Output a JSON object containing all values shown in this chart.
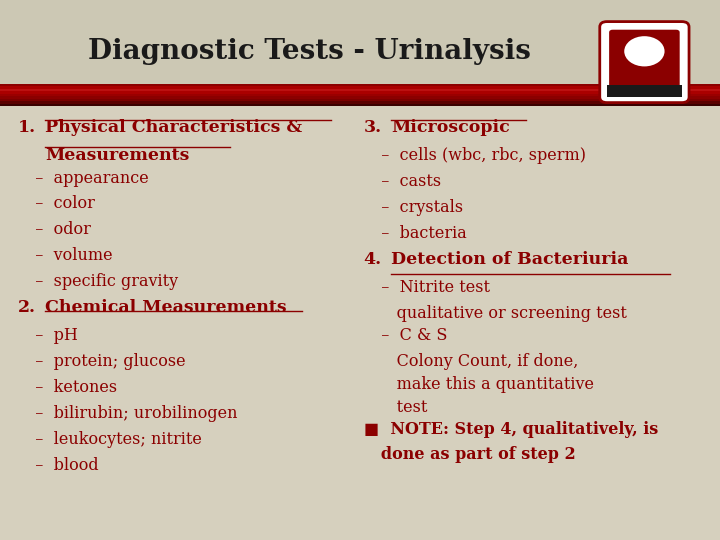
{
  "title": "Diagnostic Tests - Urinalysis",
  "bg_color": "#d6d0be",
  "header_bg": "#ccc8b4",
  "text_color_dark": "#8b0000",
  "title_color": "#1a1a1a",
  "left_column": [
    {
      "type": "numbered_header",
      "num": "1.",
      "text1": "Physical Characteristics &",
      "text2": "Measurements"
    },
    {
      "type": "bullet",
      "text": "  –  appearance"
    },
    {
      "type": "bullet",
      "text": "  –  color"
    },
    {
      "type": "bullet",
      "text": "  –  odor"
    },
    {
      "type": "bullet",
      "text": "  –  volume"
    },
    {
      "type": "bullet",
      "text": "  –  specific gravity"
    },
    {
      "type": "numbered_header",
      "num": "2.",
      "text1": "Chemical Measurements",
      "text2": ""
    },
    {
      "type": "bullet",
      "text": "  –  pH"
    },
    {
      "type": "bullet",
      "text": "  –  protein; glucose"
    },
    {
      "type": "bullet",
      "text": "  –  ketones"
    },
    {
      "type": "bullet",
      "text": "  –  bilirubin; urobilinogen"
    },
    {
      "type": "bullet",
      "text": "  –  leukocytes; nitrite"
    },
    {
      "type": "bullet",
      "text": "  –  blood"
    }
  ],
  "right_column": [
    {
      "type": "numbered_header",
      "num": "3.",
      "text1": "Microscopic",
      "text2": ""
    },
    {
      "type": "bullet",
      "text": "  –  cells (wbc, rbc, sperm)"
    },
    {
      "type": "bullet",
      "text": "  –  casts"
    },
    {
      "type": "bullet",
      "text": "  –  crystals"
    },
    {
      "type": "bullet",
      "text": "  –  bacteria"
    },
    {
      "type": "numbered_header",
      "num": "4.",
      "text1": "Detection of Bacteriuria",
      "text2": ""
    },
    {
      "type": "bullet",
      "text": "  –  Nitrite test"
    },
    {
      "type": "indent",
      "text": "     qualitative or screening test"
    },
    {
      "type": "bullet",
      "text": "  –  C & S"
    },
    {
      "type": "indent",
      "text": "     Colony Count, if done,"
    },
    {
      "type": "indent",
      "text": "     make this a quantitative"
    },
    {
      "type": "indent",
      "text": "     test"
    },
    {
      "type": "note_line1",
      "text": "■  NOTE: Step 4, qualitatively, is"
    },
    {
      "type": "note_line2",
      "text": "   done as part of step 2"
    }
  ],
  "gradient_bar_colors": [
    "#3a0000",
    "#5a0000",
    "#7a0000",
    "#8b0000",
    "#9a0000",
    "#aa0000",
    "#bb1111",
    "#aa0000",
    "#8b0000"
  ],
  "logo_color": "#8b0000"
}
